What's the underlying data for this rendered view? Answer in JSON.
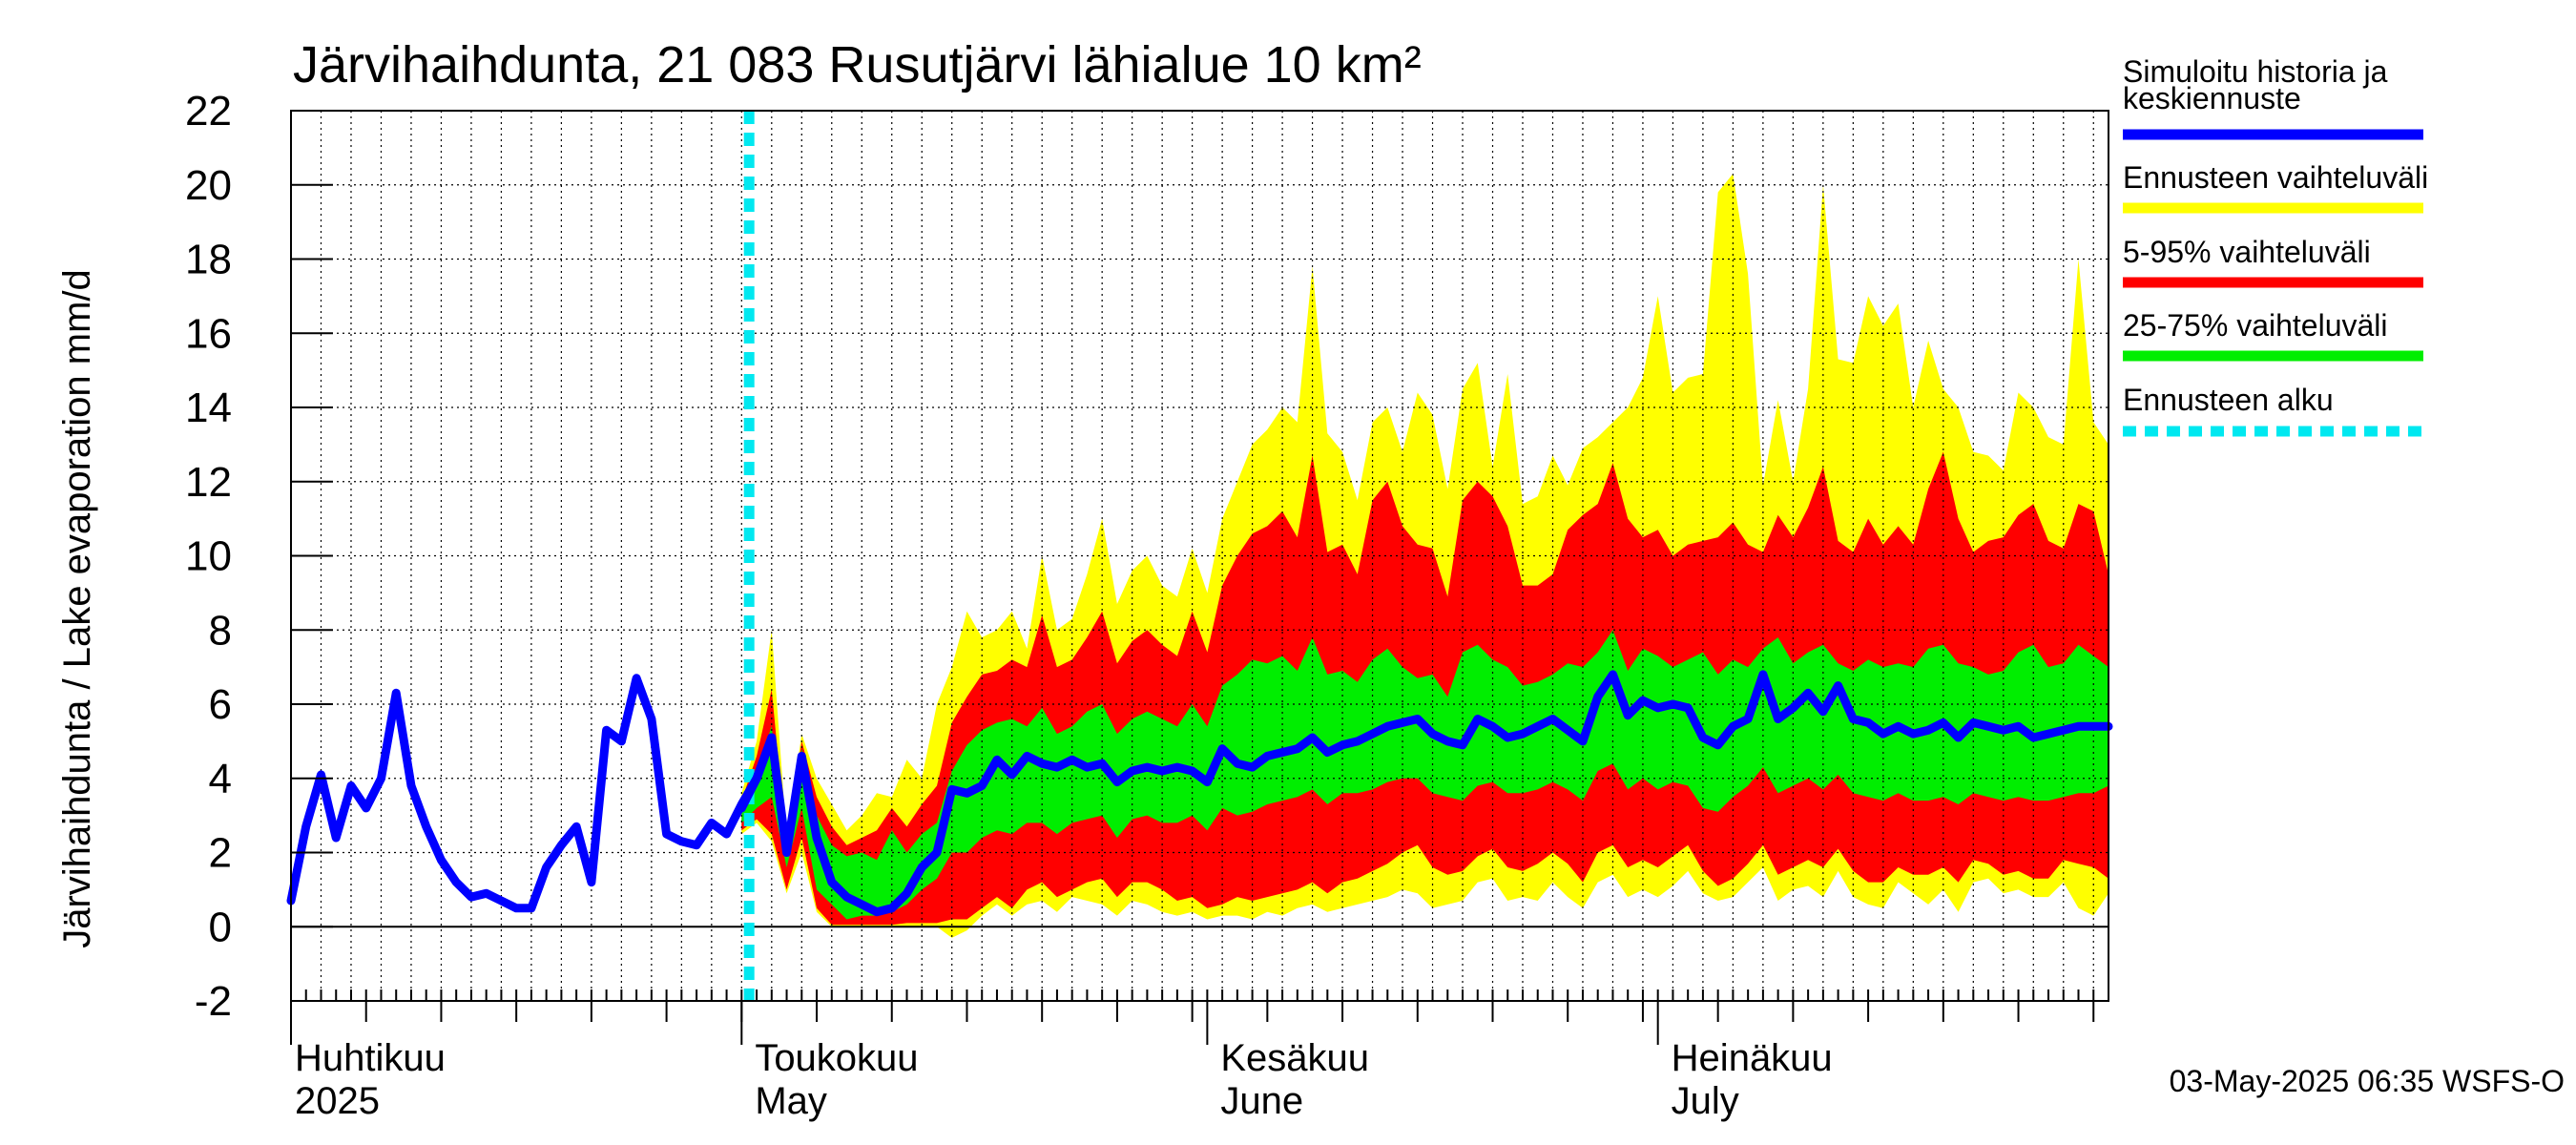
{
  "chart_data": {
    "type": "area",
    "title": "Järvihaihdunta, 21 083 Rusutjärvi lähialue 10 km²",
    "ylabel": "Järvihaihdunta / Lake evaporation   mm/d",
    "ylim": [
      -2,
      22
    ],
    "yticks": [
      -2,
      0,
      2,
      4,
      6,
      8,
      10,
      12,
      14,
      16,
      18,
      20,
      22
    ],
    "xlim_days": [
      0,
      121
    ],
    "forecast_start_day": 30.5,
    "months": [
      {
        "fi": "Huhtikuu",
        "en": "2025",
        "day": 0
      },
      {
        "fi": "Toukokuu",
        "en": "May",
        "day": 30
      },
      {
        "fi": "Kesäkuu",
        "en": "June",
        "day": 61
      },
      {
        "fi": "Heinäkuu",
        "en": "July",
        "day": 91
      }
    ],
    "history": {
      "name": "Simuloitu historia ja keskiennuste",
      "x": [
        0,
        1,
        2,
        3,
        4,
        5,
        6,
        7,
        8,
        9,
        10,
        11,
        12,
        13,
        14,
        15,
        16,
        17,
        18,
        19,
        20,
        21,
        22,
        23,
        24,
        25,
        26,
        27,
        28,
        29,
        30,
        31,
        32
      ],
      "y": [
        0.7,
        2.7,
        4.1,
        2.4,
        3.8,
        3.2,
        4.0,
        6.3,
        3.8,
        2.7,
        1.8,
        1.2,
        0.8,
        0.9,
        0.7,
        0.5,
        0.5,
        1.6,
        2.2,
        2.7,
        1.2,
        5.3,
        5.0,
        6.7,
        5.6,
        2.5,
        2.3,
        2.2,
        2.8,
        2.5,
        3.3,
        4.0,
        5.1
      ]
    },
    "median": {
      "name": "Simuloitu historia ja keskiennuste",
      "x": [
        30,
        31,
        32,
        33,
        34,
        35,
        36,
        37,
        38,
        39,
        40,
        41,
        42,
        43,
        44,
        45,
        46,
        47,
        48,
        49,
        50,
        51,
        52,
        53,
        54,
        55,
        56,
        57,
        58,
        59,
        60,
        61,
        62,
        63,
        64,
        65,
        66,
        67,
        68,
        69,
        70,
        71,
        72,
        73,
        74,
        75,
        76,
        77,
        78,
        79,
        80,
        81,
        82,
        83,
        84,
        85,
        86,
        87,
        88,
        89,
        90,
        91,
        92,
        93,
        94,
        95,
        96,
        97,
        98,
        99,
        100,
        101,
        102,
        103,
        104,
        105,
        106,
        107,
        108,
        109,
        110,
        111,
        112,
        113,
        114,
        115,
        116,
        117,
        118,
        119,
        120,
        121
      ],
      "y": [
        3.2,
        4.0,
        5.1,
        2.0,
        4.6,
        2.4,
        1.2,
        0.8,
        0.6,
        0.4,
        0.5,
        0.9,
        1.6,
        2.0,
        3.7,
        3.6,
        3.8,
        4.5,
        4.1,
        4.6,
        4.4,
        4.3,
        4.5,
        4.3,
        4.4,
        3.9,
        4.2,
        4.3,
        4.2,
        4.3,
        4.2,
        3.9,
        4.8,
        4.4,
        4.3,
        4.6,
        4.7,
        4.8,
        5.1,
        4.7,
        4.9,
        5.0,
        5.2,
        5.4,
        5.5,
        5.6,
        5.2,
        5.0,
        4.9,
        5.6,
        5.4,
        5.1,
        5.2,
        5.4,
        5.6,
        5.3,
        5.0,
        6.2,
        6.8,
        5.7,
        6.1,
        5.9,
        6.0,
        5.9,
        5.1,
        4.9,
        5.4,
        5.6,
        6.8,
        5.6,
        5.9,
        6.3,
        5.8,
        6.5,
        5.6,
        5.5,
        5.2,
        5.4,
        5.2,
        5.3,
        5.5,
        5.1,
        5.5,
        5.4,
        5.3,
        5.4,
        5.1,
        5.2,
        5.3,
        5.4,
        5.4,
        5.4
      ]
    },
    "bands": {
      "x": [
        30,
        31,
        32,
        33,
        34,
        35,
        36,
        37,
        38,
        39,
        40,
        41,
        42,
        43,
        44,
        45,
        46,
        47,
        48,
        49,
        50,
        51,
        52,
        53,
        54,
        55,
        56,
        57,
        58,
        59,
        60,
        61,
        62,
        63,
        64,
        65,
        66,
        67,
        68,
        69,
        70,
        71,
        72,
        73,
        74,
        75,
        76,
        77,
        78,
        79,
        80,
        81,
        82,
        83,
        84,
        85,
        86,
        87,
        88,
        89,
        90,
        91,
        92,
        93,
        94,
        95,
        96,
        97,
        98,
        99,
        100,
        101,
        102,
        103,
        104,
        105,
        106,
        107,
        108,
        109,
        110,
        111,
        112,
        113,
        114,
        115,
        116,
        117,
        118,
        119,
        120,
        121
      ],
      "max": [
        3.6,
        5.0,
        8.0,
        2.4,
        5.2,
        4.0,
        3.3,
        2.6,
        3.0,
        3.6,
        3.5,
        4.5,
        4.0,
        6.0,
        7.0,
        8.5,
        7.8,
        8.0,
        8.5,
        7.5,
        10.0,
        8.0,
        8.3,
        9.5,
        11.0,
        8.7,
        9.6,
        10.0,
        9.2,
        8.9,
        10.2,
        9.0,
        11.0,
        12.0,
        13.0,
        13.4,
        14.0,
        13.6,
        17.8,
        13.3,
        12.8,
        11.5,
        13.6,
        14.0,
        12.8,
        14.4,
        13.8,
        11.8,
        14.5,
        15.2,
        12.4,
        14.9,
        11.4,
        11.6,
        12.7,
        11.9,
        12.9,
        13.2,
        13.6,
        14.0,
        14.8,
        17.0,
        14.4,
        14.8,
        14.9,
        19.8,
        20.3,
        17.6,
        11.9,
        14.2,
        12.0,
        14.5,
        20.0,
        15.3,
        15.2,
        17.0,
        16.2,
        16.8,
        14.0,
        15.8,
        14.5,
        14.0,
        12.8,
        12.7,
        12.3,
        14.4,
        14.0,
        13.2,
        13.0,
        18.0,
        13.6,
        13.0
      ],
      "p95": [
        3.4,
        4.6,
        6.4,
        2.2,
        5.0,
        3.5,
        2.7,
        2.2,
        2.4,
        2.6,
        3.2,
        2.7,
        3.3,
        3.8,
        5.5,
        6.2,
        6.8,
        6.9,
        7.2,
        7.0,
        8.4,
        7.0,
        7.2,
        7.8,
        8.5,
        7.1,
        7.7,
        8.0,
        7.6,
        7.3,
        8.5,
        7.4,
        9.2,
        10.0,
        10.6,
        10.8,
        11.2,
        10.5,
        12.7,
        10.1,
        10.3,
        9.5,
        11.5,
        12.0,
        10.8,
        10.3,
        10.2,
        8.9,
        11.5,
        12.0,
        11.6,
        10.8,
        9.2,
        9.2,
        9.5,
        10.7,
        11.1,
        11.4,
        12.5,
        11.0,
        10.5,
        10.7,
        10.0,
        10.3,
        10.4,
        10.5,
        10.9,
        10.3,
        10.1,
        11.1,
        10.5,
        11.3,
        12.4,
        10.4,
        10.1,
        11.0,
        10.3,
        10.8,
        10.3,
        11.8,
        12.8,
        11.0,
        10.1,
        10.4,
        10.5,
        11.1,
        11.4,
        10.4,
        10.2,
        11.4,
        11.2,
        9.5
      ],
      "p75": [
        3.2,
        4.2,
        5.4,
        2.1,
        4.8,
        3.0,
        2.2,
        1.9,
        2.0,
        1.8,
        2.6,
        2.0,
        2.5,
        2.8,
        4.2,
        4.9,
        5.3,
        5.5,
        5.6,
        5.4,
        5.9,
        5.2,
        5.4,
        5.8,
        6.0,
        5.2,
        5.6,
        5.8,
        5.6,
        5.4,
        6.0,
        5.4,
        6.5,
        6.8,
        7.2,
        7.1,
        7.3,
        6.9,
        7.8,
        6.8,
        6.9,
        6.6,
        7.2,
        7.5,
        7.0,
        6.7,
        6.8,
        6.2,
        7.4,
        7.6,
        7.2,
        7.0,
        6.5,
        6.6,
        6.8,
        7.1,
        7.0,
        7.4,
        8.0,
        6.9,
        7.5,
        7.3,
        7.0,
        7.2,
        7.4,
        6.8,
        7.2,
        7.0,
        7.5,
        7.8,
        7.1,
        7.4,
        7.6,
        7.1,
        6.9,
        7.2,
        7.0,
        7.1,
        7.0,
        7.5,
        7.6,
        7.1,
        7.0,
        6.8,
        6.9,
        7.4,
        7.6,
        7.0,
        7.1,
        7.6,
        7.3,
        7.0
      ],
      "p25": [
        2.8,
        3.2,
        3.5,
        1.6,
        3.2,
        1.0,
        0.6,
        0.2,
        0.3,
        0.3,
        0.4,
        0.6,
        1.0,
        1.3,
        2.0,
        2.0,
        2.4,
        2.6,
        2.5,
        2.8,
        2.8,
        2.5,
        2.8,
        2.9,
        3.0,
        2.4,
        2.9,
        3.0,
        2.8,
        2.8,
        3.0,
        2.6,
        3.2,
        3.0,
        3.1,
        3.3,
        3.4,
        3.5,
        3.7,
        3.3,
        3.6,
        3.6,
        3.7,
        3.9,
        4.0,
        4.0,
        3.6,
        3.5,
        3.4,
        3.8,
        3.9,
        3.6,
        3.6,
        3.7,
        3.9,
        3.7,
        3.4,
        4.2,
        4.4,
        3.7,
        4.0,
        3.7,
        3.9,
        3.8,
        3.2,
        3.1,
        3.5,
        3.8,
        4.3,
        3.6,
        3.8,
        4.0,
        3.7,
        4.1,
        3.6,
        3.5,
        3.4,
        3.6,
        3.4,
        3.4,
        3.5,
        3.3,
        3.6,
        3.5,
        3.4,
        3.5,
        3.4,
        3.4,
        3.5,
        3.6,
        3.6,
        3.8
      ],
      "p5": [
        2.6,
        2.9,
        2.5,
        1.0,
        2.4,
        0.5,
        0.05,
        0.05,
        0.05,
        0.05,
        0.05,
        0.1,
        0.1,
        0.1,
        0.2,
        0.2,
        0.5,
        0.8,
        0.5,
        1.0,
        1.2,
        0.8,
        1.0,
        1.2,
        1.3,
        0.8,
        1.2,
        1.2,
        1.0,
        0.7,
        0.8,
        0.5,
        0.6,
        0.8,
        0.7,
        0.8,
        0.9,
        1.0,
        1.2,
        0.9,
        1.2,
        1.3,
        1.5,
        1.7,
        2.0,
        2.2,
        1.6,
        1.4,
        1.5,
        1.9,
        2.1,
        1.6,
        1.5,
        1.7,
        2.0,
        1.7,
        1.2,
        2.0,
        2.2,
        1.6,
        1.8,
        1.6,
        1.9,
        2.2,
        1.5,
        1.1,
        1.3,
        1.7,
        2.2,
        1.4,
        1.6,
        1.8,
        1.6,
        2.1,
        1.5,
        1.2,
        1.2,
        1.6,
        1.4,
        1.4,
        1.6,
        1.2,
        1.8,
        1.7,
        1.4,
        1.5,
        1.3,
        1.3,
        1.8,
        1.7,
        1.6,
        1.3
      ],
      "min": [
        2.5,
        2.8,
        2.3,
        0.9,
        2.0,
        0.4,
        0.0,
        0.0,
        0.0,
        0.0,
        0.0,
        0.0,
        0.0,
        0.0,
        -0.3,
        -0.1,
        0.3,
        0.6,
        0.3,
        0.6,
        0.7,
        0.4,
        0.8,
        0.7,
        0.6,
        0.3,
        0.7,
        0.6,
        0.4,
        0.3,
        0.4,
        0.2,
        0.3,
        0.3,
        0.2,
        0.4,
        0.3,
        0.5,
        0.6,
        0.4,
        0.5,
        0.6,
        0.7,
        0.8,
        1.0,
        0.9,
        0.5,
        0.6,
        0.7,
        1.2,
        1.3,
        0.7,
        0.8,
        0.7,
        1.2,
        0.8,
        0.5,
        1.2,
        1.4,
        0.8,
        1.0,
        0.8,
        1.1,
        1.5,
        0.9,
        0.7,
        0.8,
        1.2,
        1.6,
        0.7,
        1.0,
        1.1,
        0.8,
        1.5,
        0.8,
        0.6,
        0.5,
        1.2,
        0.9,
        0.6,
        1.0,
        0.4,
        1.2,
        1.3,
        0.9,
        1.0,
        0.8,
        0.8,
        1.2,
        0.5,
        0.3,
        0.9
      ]
    },
    "legend": [
      {
        "label": "Simuloitu historia ja keskiennuste",
        "color": "#0000ff",
        "style": "solid"
      },
      {
        "label": "Ennusteen vaihteluväli",
        "color": "#ffff00",
        "style": "solid"
      },
      {
        "label": "5-95% vaihteluväli",
        "color": "#ff0000",
        "style": "solid"
      },
      {
        "label": "25-75% vaihteluväli",
        "color": "#00ee00",
        "style": "solid"
      },
      {
        "label": "Ennusteen alku",
        "color": "#00e8f0",
        "style": "dashed"
      }
    ],
    "colors": {
      "range": "#ffff00",
      "p5_95": "#ff0000",
      "p25_75": "#00ee00",
      "median": "#0000ff",
      "forecast_start": "#00e8f0",
      "grid": "#000000"
    }
  },
  "footer": {
    "timestamp": "03-May-2025 06:35 WSFS-O"
  }
}
